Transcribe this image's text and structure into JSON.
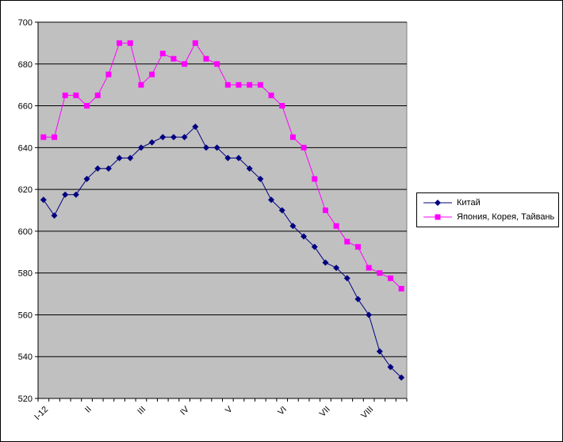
{
  "chart_data": {
    "type": "line",
    "title": "",
    "xlabel": "",
    "ylabel": "",
    "ylim": [
      520,
      700
    ],
    "yticks": [
      520,
      540,
      560,
      580,
      600,
      620,
      640,
      660,
      680,
      700
    ],
    "grid": "horizontal",
    "legend_position": "right",
    "plot_background": "#c0c0c0",
    "x_tick_labels": [
      {
        "label": "I-12",
        "index": 0
      },
      {
        "label": "II",
        "index": 4
      },
      {
        "label": "III",
        "index": 9
      },
      {
        "label": "IV",
        "index": 13
      },
      {
        "label": "V",
        "index": 17
      },
      {
        "label": "VI",
        "index": 22
      },
      {
        "label": "VII",
        "index": 26
      },
      {
        "label": "VIII",
        "index": 30
      }
    ],
    "series": [
      {
        "name": "Китай",
        "color": "#000080",
        "marker": "diamond",
        "values": [
          615,
          607.5,
          617.5,
          617.5,
          625,
          630,
          630,
          635,
          635,
          640,
          642.5,
          645,
          645,
          645,
          650,
          640,
          640,
          635,
          635,
          630,
          625,
          615,
          610,
          602.5,
          597.5,
          592.5,
          585,
          582.5,
          577.5,
          567.5,
          560,
          542.5,
          535,
          530
        ]
      },
      {
        "name": "Япония, Корея, Тайвань",
        "color": "#ff00ff",
        "marker": "square",
        "values": [
          645,
          645,
          665,
          665,
          660,
          665,
          675,
          690,
          690,
          670,
          675,
          685,
          682.5,
          680,
          690,
          682.5,
          680,
          670,
          670,
          670,
          670,
          665,
          660,
          645,
          640,
          625,
          610,
          602.5,
          595,
          592.5,
          582.5,
          580,
          577.5,
          572.5
        ]
      }
    ]
  }
}
